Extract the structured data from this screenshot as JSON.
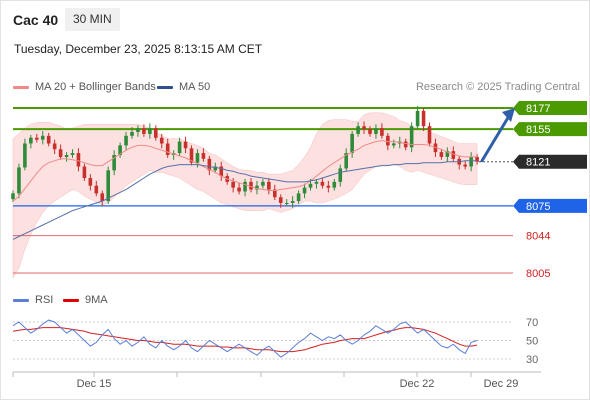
{
  "header": {
    "title": "Cac 40",
    "timeframe": "30 MIN",
    "date": "Tuesday, December 23, 2025 8:13:15 AM CET",
    "research": "Research © 2025 Trading Central"
  },
  "legend": {
    "ma20_label": "MA 20 + Bollinger Bands",
    "ma50_label": "MA 50",
    "rsi_label": "RSI",
    "ma9_label": "9MA"
  },
  "colors": {
    "bollinger_band": "#fde0e0",
    "ma20": "#f08a8a",
    "ma50": "#5570a8",
    "resistance": "#4a9a00",
    "support_blue": "#1e63e8",
    "support_red": "#e06a6a",
    "last_price": "#2b2b2b",
    "candle_up": "#2e8b3a",
    "candle_down": "#c8302c",
    "arrow": "#2f5fa8",
    "rsi": "#5b7fd6",
    "rsi_ma": "#d42020"
  },
  "chart_data": {
    "type": "candlestick",
    "instrument": "Cac 40",
    "interval": "30 MIN",
    "x_tick_labels": [
      "Dec 15",
      "Dec 22",
      "Dec 29"
    ],
    "price_levels": [
      {
        "value": 8177,
        "label": "8177",
        "kind": "resistance"
      },
      {
        "value": 8155,
        "label": "8155",
        "kind": "resistance"
      },
      {
        "value": 8121,
        "label": "8121",
        "kind": "last"
      },
      {
        "value": 8075,
        "label": "8075",
        "kind": "support"
      },
      {
        "value": 8044,
        "label": "8044",
        "kind": "support"
      },
      {
        "value": 8005,
        "label": "8005",
        "kind": "support"
      }
    ],
    "price_range": [
      7995,
      8190
    ],
    "close_series": [
      8088,
      8115,
      8140,
      8146,
      8144,
      8148,
      8140,
      8134,
      8126,
      8128,
      8130,
      8116,
      8104,
      8096,
      8088,
      8080,
      8112,
      8128,
      8138,
      8148,
      8152,
      8156,
      8150,
      8156,
      8146,
      8140,
      8128,
      8130,
      8142,
      8135,
      8120,
      8130,
      8124,
      8112,
      8116,
      8106,
      8100,
      8094,
      8090,
      8100,
      8092,
      8096,
      8100,
      8092,
      8084,
      8078,
      8078,
      8080,
      8088,
      8094,
      8098,
      8100,
      8096,
      8094,
      8100,
      8114,
      8130,
      8150,
      8158,
      8155,
      8150,
      8156,
      8148,
      8138,
      8140,
      8142,
      8136,
      8158,
      8174,
      8158,
      8140,
      8131,
      8126,
      8132,
      8124,
      8118,
      8116,
      8126,
      8121
    ],
    "ma20_series": [
      8080,
      8085,
      8093,
      8101,
      8109,
      8116,
      8120,
      8122,
      8124,
      8124,
      8123,
      8122,
      8120,
      8118,
      8117,
      8117,
      8121,
      8125,
      8129,
      8133,
      8136,
      8138,
      8138,
      8137,
      8135,
      8133,
      8131,
      8129,
      8127,
      8125,
      8122,
      8119,
      8116,
      8113,
      8110,
      8106,
      8103,
      8101,
      8099,
      8097,
      8095,
      8093,
      8092,
      8091,
      8091,
      8092,
      8093,
      8094,
      8095,
      8097,
      8101,
      8106,
      8111,
      8116,
      8120,
      8124,
      8128,
      8131,
      8134,
      8138,
      8140,
      8142,
      8143,
      8142,
      8142,
      8141,
      8140,
      8139,
      8139,
      8139,
      8138,
      8136,
      8134,
      8131,
      8129,
      8127,
      8126,
      8126,
      8126
    ],
    "bb_upper_series": [
      8145,
      8150,
      8156,
      8160,
      8162,
      8162,
      8162,
      8160,
      8158,
      8155,
      8156,
      8158,
      8160,
      8160,
      8160,
      8160,
      8160,
      8160,
      8160,
      8160,
      8160,
      8160,
      8158,
      8156,
      8152,
      8148,
      8145,
      8145,
      8145,
      8142,
      8140,
      8138,
      8135,
      8130,
      8128,
      8124,
      8120,
      8116,
      8113,
      8112,
      8112,
      8110,
      8110,
      8108,
      8108,
      8108,
      8110,
      8112,
      8118,
      8126,
      8136,
      8150,
      8160,
      8164,
      8165,
      8165,
      8165,
      8163,
      8163,
      8170,
      8172,
      8172,
      8172,
      8170,
      8168,
      8164,
      8162,
      8158,
      8156,
      8154,
      8152,
      8150,
      8147,
      8145,
      8142,
      8140,
      8140,
      8140,
      8140
    ],
    "bb_lower_series": [
      8000,
      8010,
      8030,
      8045,
      8058,
      8068,
      8075,
      8080,
      8084,
      8088,
      8092,
      8090,
      8085,
      8082,
      8079,
      8076,
      8078,
      8084,
      8090,
      8096,
      8100,
      8104,
      8108,
      8112,
      8110,
      8110,
      8108,
      8106,
      8104,
      8100,
      8096,
      8092,
      8090,
      8086,
      8082,
      8078,
      8076,
      8074,
      8072,
      8070,
      8070,
      8070,
      8070,
      8072,
      8070,
      8068,
      8070,
      8072,
      8076,
      8080,
      8080,
      8078,
      8078,
      8080,
      8082,
      8085,
      8088,
      8092,
      8100,
      8108,
      8112,
      8116,
      8118,
      8118,
      8118,
      8116,
      8112,
      8110,
      8112,
      8110,
      8108,
      8106,
      8104,
      8102,
      8100,
      8098,
      8097,
      8097,
      8097
    ],
    "ma50_series": [
      8040,
      8043,
      8046,
      8049,
      8052,
      8055,
      8058,
      8061,
      8064,
      8067,
      8070,
      8072,
      8074,
      8076,
      8078,
      8080,
      8083,
      8086,
      8089,
      8092,
      8096,
      8100,
      8104,
      8108,
      8111,
      8114,
      8116,
      8117,
      8118,
      8118,
      8118,
      8118,
      8117,
      8116,
      8115,
      8114,
      8112,
      8111,
      8109,
      8108,
      8106,
      8105,
      8104,
      8103,
      8102,
      8101,
      8100,
      8100,
      8100,
      8100,
      8101,
      8102,
      8104,
      8106,
      8108,
      8110,
      8111,
      8112,
      8113,
      8114,
      8115,
      8116,
      8117,
      8117,
      8118,
      8118,
      8119,
      8119,
      8119,
      8120,
      8120,
      8120,
      8120,
      8121,
      8121,
      8121,
      8122,
      8122,
      8122
    ],
    "projection": {
      "from": 8121,
      "to": 8177,
      "direction": "up"
    },
    "rsi": {
      "y_ticks": [
        70,
        50,
        30
      ],
      "range": [
        20,
        80
      ],
      "rsi_series": [
        66,
        70,
        64,
        58,
        62,
        68,
        72,
        70,
        64,
        58,
        62,
        56,
        50,
        44,
        48,
        56,
        62,
        52,
        46,
        50,
        44,
        48,
        54,
        46,
        42,
        50,
        44,
        40,
        44,
        50,
        42,
        38,
        44,
        50,
        46,
        42,
        38,
        42,
        46,
        42,
        38,
        34,
        40,
        44,
        38,
        32,
        36,
        42,
        48,
        52,
        58,
        54,
        50,
        54,
        52,
        56,
        50,
        46,
        50,
        56,
        60,
        66,
        62,
        58,
        62,
        68,
        70,
        64,
        58,
        62,
        56,
        50,
        44,
        42,
        46,
        40,
        36,
        48,
        50
      ],
      "ma9_series": [
        60,
        61,
        62,
        62,
        63,
        64,
        64,
        64,
        64,
        63,
        62,
        61,
        60,
        58,
        57,
        56,
        55,
        54,
        53,
        52,
        51,
        50,
        50,
        49,
        48,
        48,
        47,
        46,
        46,
        46,
        45,
        44,
        44,
        44,
        44,
        43,
        43,
        42,
        42,
        42,
        41,
        40,
        40,
        40,
        39,
        38,
        38,
        38,
        39,
        40,
        42,
        44,
        46,
        47,
        48,
        50,
        51,
        52,
        52,
        52,
        54,
        56,
        58,
        60,
        61,
        63,
        64,
        64,
        63,
        62,
        60,
        58,
        55,
        52,
        49,
        46,
        44,
        44,
        45
      ]
    }
  }
}
